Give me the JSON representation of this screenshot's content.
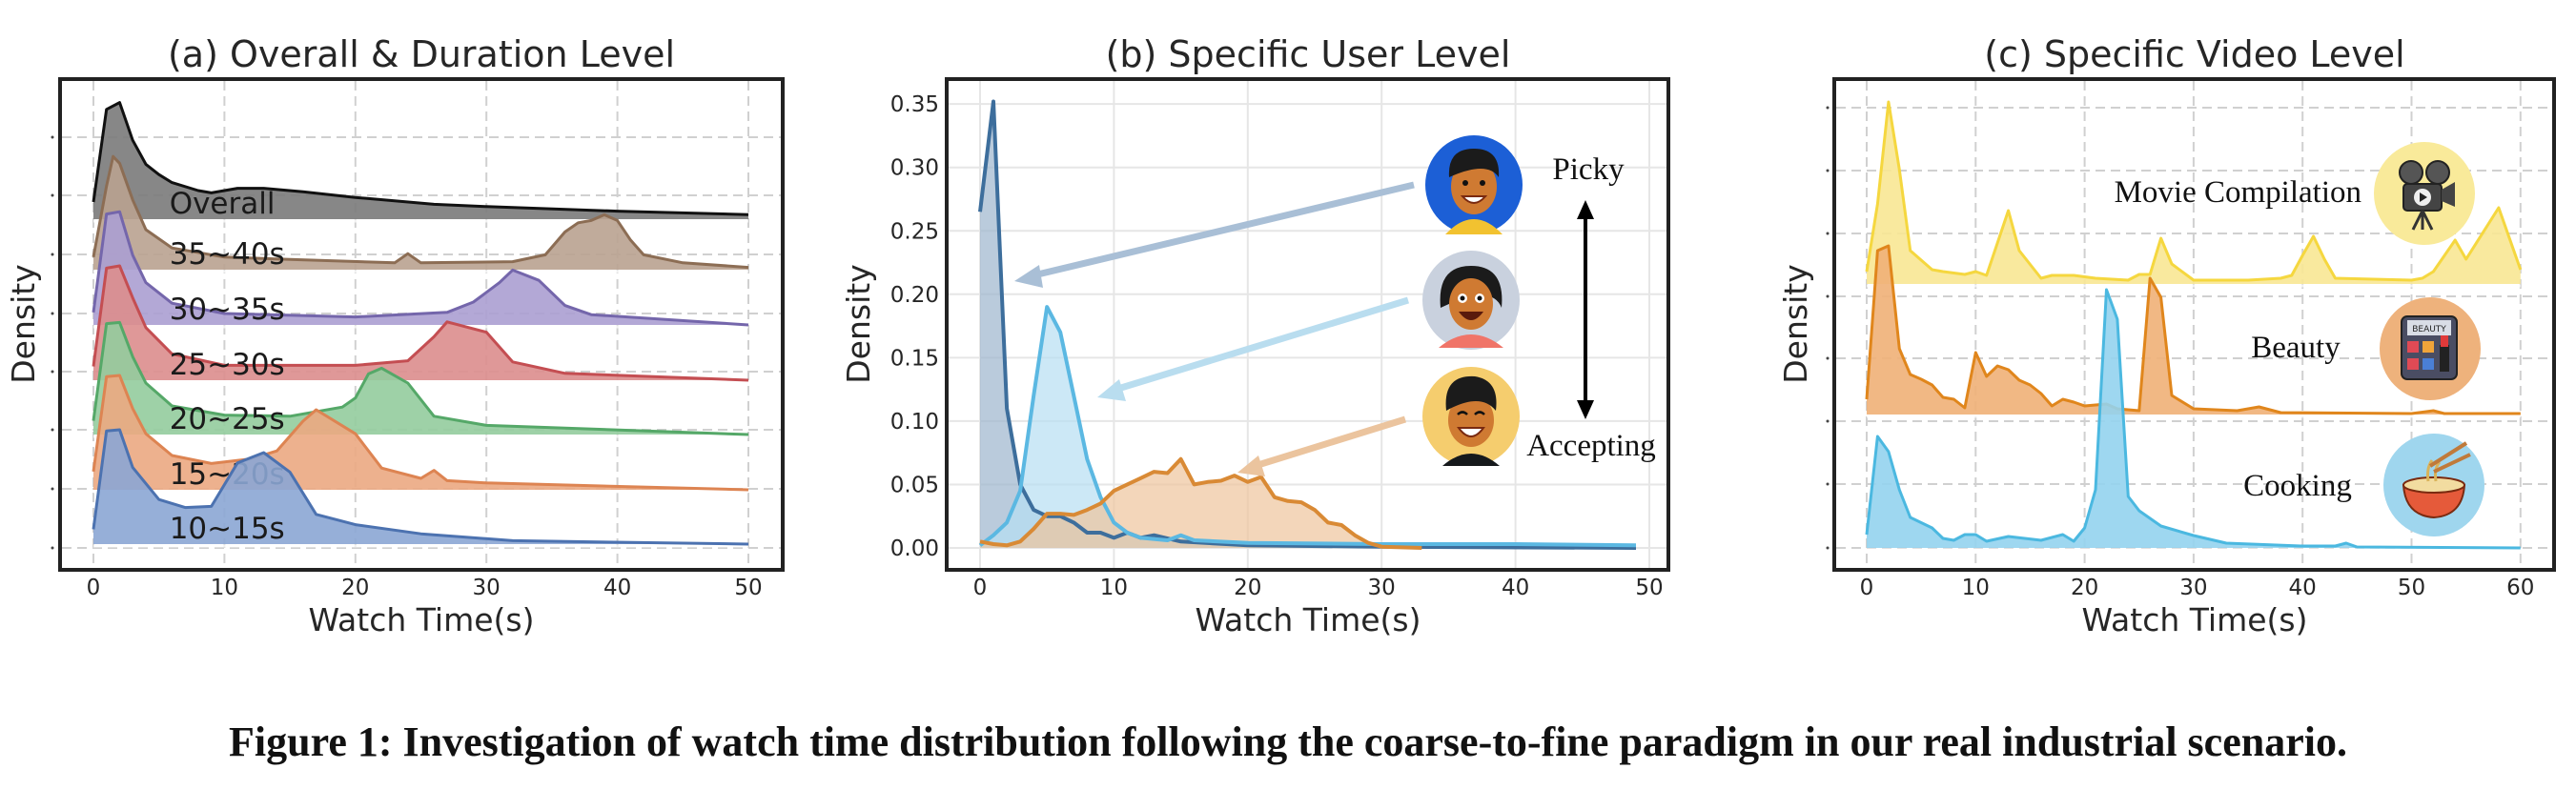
{
  "caption": "Figure 1: Investigation of watch time distribution following the coarse-to-fine paradigm in our real industrial scenario.",
  "chart_data": [
    {
      "type": "area",
      "style": "ridgeline",
      "title": "(a) Overall & Duration Level",
      "xlabel": "Watch Time(s)",
      "ylabel": "Density",
      "xlim": [
        -2.5,
        52
      ],
      "xticks": [
        "0",
        "10",
        "20",
        "30",
        "40",
        "50"
      ],
      "grid": "dashed",
      "y_tick_labels_shown": false,
      "series": [
        {
          "name": "Overall",
          "color": "#111111",
          "fill": "#7a7a7a",
          "x": [
            0,
            1,
            2,
            3,
            4,
            5,
            6,
            8,
            9,
            11,
            13,
            16,
            20,
            26,
            30,
            40,
            50
          ],
          "y": [
            0.15,
            0.96,
            1.02,
            0.69,
            0.48,
            0.39,
            0.32,
            0.25,
            0.23,
            0.27,
            0.27,
            0.24,
            0.19,
            0.13,
            0.11,
            0.07,
            0.04
          ]
        },
        {
          "name": "35~40s",
          "color": "#8c6d54",
          "fill": "#b9a290",
          "x": [
            0,
            1,
            1.5,
            2,
            3,
            4,
            6,
            10,
            15,
            23,
            24,
            25,
            32,
            34.5,
            36,
            37,
            38,
            39,
            40,
            41,
            42,
            45,
            50
          ],
          "y": [
            0.11,
            0.73,
            0.99,
            0.93,
            0.61,
            0.35,
            0.19,
            0.11,
            0.09,
            0.06,
            0.14,
            0.06,
            0.07,
            0.13,
            0.33,
            0.41,
            0.43,
            0.48,
            0.43,
            0.26,
            0.13,
            0.06,
            0.02
          ]
        },
        {
          "name": "30~35s",
          "color": "#7466ab",
          "fill": "#ab9fd2",
          "x": [
            0,
            1,
            2,
            3,
            4,
            6,
            10,
            20,
            27,
            29,
            31,
            32,
            34,
            36,
            38,
            50
          ],
          "y": [
            0.11,
            0.97,
            0.99,
            0.61,
            0.37,
            0.19,
            0.1,
            0.07,
            0.11,
            0.2,
            0.37,
            0.48,
            0.39,
            0.17,
            0.09,
            0.0
          ]
        },
        {
          "name": "25~30s",
          "color": "#c44e52",
          "fill": "#dc8d8d",
          "x": [
            0,
            1,
            2,
            3,
            4,
            6,
            10,
            20,
            24,
            26,
            27,
            30,
            32,
            36,
            50
          ],
          "y": [
            0.12,
            0.98,
            1.0,
            0.72,
            0.46,
            0.23,
            0.13,
            0.13,
            0.17,
            0.38,
            0.51,
            0.42,
            0.16,
            0.06,
            0.0
          ]
        },
        {
          "name": "20~25s",
          "color": "#55a868",
          "fill": "#93cc9d",
          "x": [
            0,
            1,
            2,
            3,
            4,
            6,
            10,
            15,
            19,
            20,
            21,
            22,
            24,
            26,
            30,
            50
          ],
          "y": [
            0.12,
            0.97,
            0.98,
            0.68,
            0.45,
            0.25,
            0.17,
            0.16,
            0.24,
            0.32,
            0.53,
            0.58,
            0.45,
            0.16,
            0.08,
            0.0
          ]
        },
        {
          "name": "15~20s",
          "color": "#dd8452",
          "fill": "#eba982",
          "x": [
            0,
            1,
            2,
            3,
            4,
            6,
            9,
            12,
            14,
            16,
            17,
            20,
            22,
            25,
            26,
            27,
            30,
            50
          ],
          "y": [
            0.16,
            0.99,
            1.0,
            0.71,
            0.49,
            0.3,
            0.23,
            0.27,
            0.34,
            0.6,
            0.7,
            0.49,
            0.19,
            0.1,
            0.17,
            0.08,
            0.06,
            0.0
          ]
        },
        {
          "name": "10~15s",
          "color": "#4c72b0",
          "fill": "#8ba6d4",
          "x": [
            0,
            1,
            2,
            3,
            5,
            7,
            9,
            11,
            13,
            15,
            17,
            20,
            25,
            32,
            50
          ],
          "y": [
            0.13,
            0.99,
            1.0,
            0.67,
            0.39,
            0.32,
            0.33,
            0.71,
            0.8,
            0.63,
            0.26,
            0.17,
            0.09,
            0.03,
            0.0
          ]
        }
      ]
    },
    {
      "type": "area",
      "title": "(b) Specific User Level",
      "xlabel": "Watch Time(s)",
      "ylabel": "Density",
      "xlim": [
        -2.5,
        51
      ],
      "ylim": [
        -0.015,
        0.365
      ],
      "xticks": [
        "0",
        "10",
        "20",
        "30",
        "40",
        "50"
      ],
      "yticks": [
        "0.00",
        "0.05",
        "0.10",
        "0.15",
        "0.20",
        "0.25",
        "0.30",
        "0.35"
      ],
      "grid": "solid",
      "annotations": {
        "top": "Picky",
        "bottom": "Accepting"
      },
      "icons": [
        "avatar-picky-user-icon",
        "avatar-medium-user-icon",
        "avatar-accepting-user-icon"
      ],
      "series": [
        {
          "color": "#3d6e9c",
          "fill": "#9db5cd",
          "arrow_color": "#a9bfd6",
          "x": [
            0,
            1,
            2,
            3,
            4,
            5,
            6,
            7,
            8,
            9,
            10,
            11,
            12,
            13,
            15,
            20,
            30,
            49
          ],
          "y": [
            0.265,
            0.352,
            0.11,
            0.05,
            0.03,
            0.025,
            0.025,
            0.02,
            0.012,
            0.012,
            0.008,
            0.012,
            0.008,
            0.01,
            0.005,
            0.002,
            0.001,
            0.0
          ]
        },
        {
          "color": "#5bb8e2",
          "fill": "#b6def2",
          "arrow_color": "#b9ddef",
          "x": [
            0,
            1,
            2,
            3,
            4,
            5,
            6,
            7,
            8,
            9,
            10,
            11,
            12,
            14,
            15,
            16,
            20,
            30,
            40,
            49
          ],
          "y": [
            0.002,
            0.01,
            0.02,
            0.045,
            0.12,
            0.19,
            0.17,
            0.12,
            0.07,
            0.04,
            0.02,
            0.012,
            0.008,
            0.006,
            0.01,
            0.006,
            0.004,
            0.003,
            0.003,
            0.002
          ]
        },
        {
          "color": "#d98a35",
          "fill": "#eec59c",
          "arrow_color": "#ebc49e",
          "x": [
            0,
            1,
            2,
            3,
            4,
            5,
            6,
            7,
            8,
            9,
            10,
            11,
            12,
            13,
            14,
            15,
            16,
            17,
            18,
            19,
            20,
            21,
            22,
            23,
            24,
            25,
            26,
            27,
            28,
            29,
            30,
            33
          ],
          "y": [
            0.005,
            0.003,
            0.002,
            0.005,
            0.015,
            0.027,
            0.027,
            0.026,
            0.03,
            0.035,
            0.045,
            0.05,
            0.055,
            0.06,
            0.059,
            0.07,
            0.05,
            0.052,
            0.053,
            0.057,
            0.052,
            0.056,
            0.04,
            0.037,
            0.036,
            0.03,
            0.02,
            0.018,
            0.01,
            0.004,
            0.001,
            0.0
          ]
        }
      ]
    },
    {
      "type": "area",
      "style": "ridgeline",
      "title": "(c) Specific Video Level",
      "xlabel": "Watch Time(s)",
      "ylabel": "Density",
      "xlim": [
        -3,
        63
      ],
      "xticks": [
        "0",
        "10",
        "20",
        "30",
        "40",
        "50",
        "60"
      ],
      "grid": "dashed",
      "y_tick_labels_shown": false,
      "series": [
        {
          "name": "Movie Compilation",
          "icon": "film-projector-icon",
          "color": "#f5d73f",
          "fill": "#f8e793",
          "badge": "#f9ea9a",
          "x": [
            0,
            1,
            2,
            3,
            4,
            6,
            7,
            9,
            10,
            11,
            13,
            14,
            16,
            17,
            19,
            21,
            24,
            25,
            26,
            27,
            28,
            30,
            35,
            38,
            39,
            40,
            41,
            42,
            43,
            50,
            51,
            52,
            54,
            55,
            58,
            60
          ],
          "y": [
            0.13,
            0.84,
            1.91,
            1.2,
            0.35,
            0.15,
            0.13,
            0.1,
            0.13,
            0.09,
            0.77,
            0.35,
            0.06,
            0.09,
            0.09,
            0.06,
            0.04,
            0.1,
            0.1,
            0.48,
            0.21,
            0.04,
            0.04,
            0.06,
            0.09,
            0.3,
            0.5,
            0.26,
            0.06,
            0.04,
            0.06,
            0.13,
            0.46,
            0.26,
            0.8,
            0.15
          ]
        },
        {
          "name": "Beauty",
          "icon": "makeup-palette-icon",
          "icon_text": "BEAUTY",
          "color": "#e0861c",
          "fill": "#efb077",
          "badge": "#eeb27c",
          "x": [
            0,
            1,
            2,
            3,
            4,
            5,
            6,
            7,
            8,
            9,
            10,
            11,
            12,
            13,
            14,
            15,
            16,
            17,
            18,
            19,
            20,
            22,
            23,
            25,
            26,
            27,
            28,
            30,
            34,
            36,
            38,
            50,
            52,
            53,
            60
          ],
          "y": [
            0.16,
            1.72,
            1.77,
            0.69,
            0.42,
            0.37,
            0.31,
            0.18,
            0.16,
            0.07,
            0.65,
            0.4,
            0.51,
            0.47,
            0.36,
            0.31,
            0.22,
            0.09,
            0.16,
            0.13,
            0.09,
            0.11,
            0.06,
            0.04,
            1.43,
            1.23,
            0.2,
            0.06,
            0.04,
            0.08,
            0.02,
            0.01,
            0.04,
            0.01,
            0.01
          ]
        },
        {
          "name": "Cooking",
          "icon": "noodle-bowl-icon",
          "color": "#4bb8e0",
          "fill": "#93d3ee",
          "badge": "#9fd6ee",
          "x": [
            0,
            1,
            2,
            3,
            4,
            6,
            7,
            8,
            9,
            10,
            11,
            13,
            16,
            18,
            19,
            20,
            21,
            22,
            23,
            24,
            25,
            27,
            30,
            33,
            40,
            43,
            44,
            45,
            60
          ],
          "y": [
            0.14,
            1.17,
            1.01,
            0.61,
            0.32,
            0.21,
            0.1,
            0.08,
            0.14,
            0.14,
            0.07,
            0.12,
            0.08,
            0.14,
            0.07,
            0.21,
            0.61,
            2.71,
            2.4,
            0.54,
            0.39,
            0.23,
            0.13,
            0.05,
            0.02,
            0.02,
            0.05,
            0.01,
            0.0
          ]
        }
      ]
    }
  ]
}
